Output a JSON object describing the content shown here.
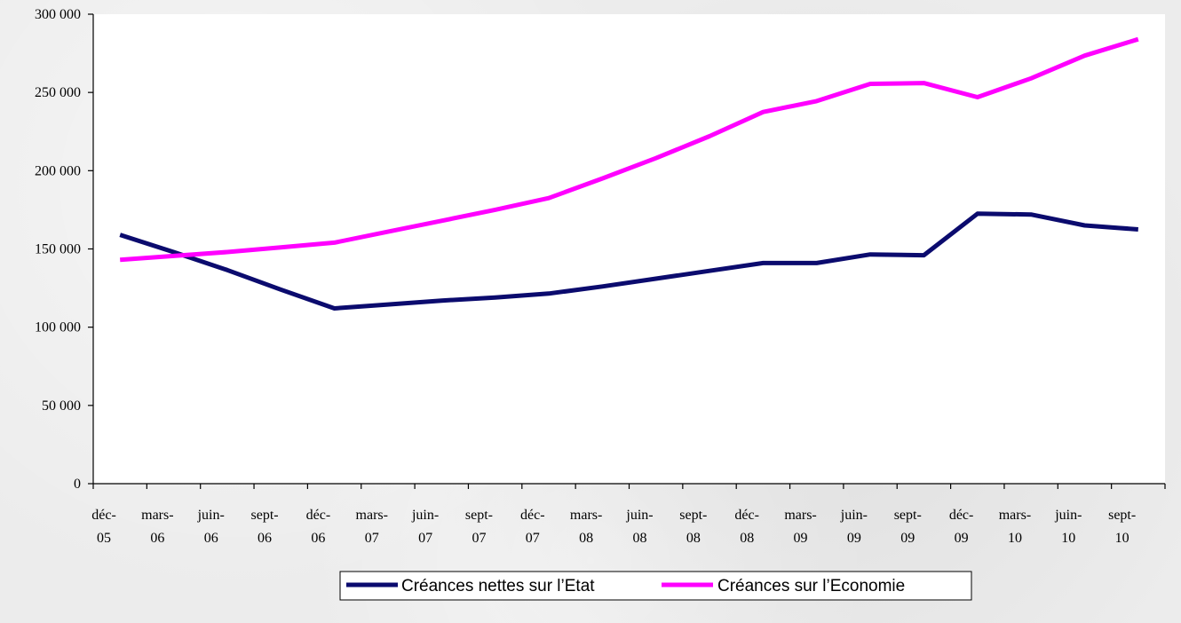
{
  "chart_data": {
    "type": "line",
    "title": "",
    "xlabel": "",
    "ylabel": "",
    "ylim": [
      0,
      300000
    ],
    "yticks": [
      {
        "value": 0,
        "label": "0"
      },
      {
        "value": 50000,
        "label": "50 000"
      },
      {
        "value": 100000,
        "label": "100 000"
      },
      {
        "value": 150000,
        "label": "150 000"
      },
      {
        "value": 200000,
        "label": "200 000"
      },
      {
        "value": 250000,
        "label": "250 000"
      },
      {
        "value": 300000,
        "label": "300 000"
      }
    ],
    "categories": [
      [
        "déc-",
        "05"
      ],
      [
        "mars-",
        "06"
      ],
      [
        "juin-",
        "06"
      ],
      [
        "sept-",
        "06"
      ],
      [
        "déc-",
        "06"
      ],
      [
        "mars-",
        "07"
      ],
      [
        "juin-",
        "07"
      ],
      [
        "sept-",
        "07"
      ],
      [
        "déc-",
        "07"
      ],
      [
        "mars-",
        "08"
      ],
      [
        "juin-",
        "08"
      ],
      [
        "sept-",
        "08"
      ],
      [
        "déc-",
        "08"
      ],
      [
        "mars-",
        "09"
      ],
      [
        "juin-",
        "09"
      ],
      [
        "sept-",
        "09"
      ],
      [
        "déc-",
        "09"
      ],
      [
        "mars-",
        "10"
      ],
      [
        "juin-",
        "10"
      ],
      [
        "sept-",
        "10"
      ]
    ],
    "series": [
      {
        "name": "Créances nettes sur l’Etat",
        "color": "#0b0b6e",
        "values": [
          159000,
          148000,
          136500,
          124000,
          112000,
          114500,
          117000,
          119000,
          121500,
          126000,
          131000,
          136000,
          141000,
          141000,
          146500,
          146000,
          172500,
          172000,
          165000,
          162500
        ]
      },
      {
        "name": "Créances sur l’Economie",
        "color": "#ff00ff",
        "values": [
          143000,
          145500,
          148000,
          151000,
          154000,
          161000,
          168000,
          175000,
          182500,
          195000,
          208000,
          222000,
          237500,
          244500,
          255500,
          256000,
          247000,
          259000,
          273500,
          284000
        ]
      }
    ],
    "grid": false,
    "legend": "bottom-center"
  }
}
